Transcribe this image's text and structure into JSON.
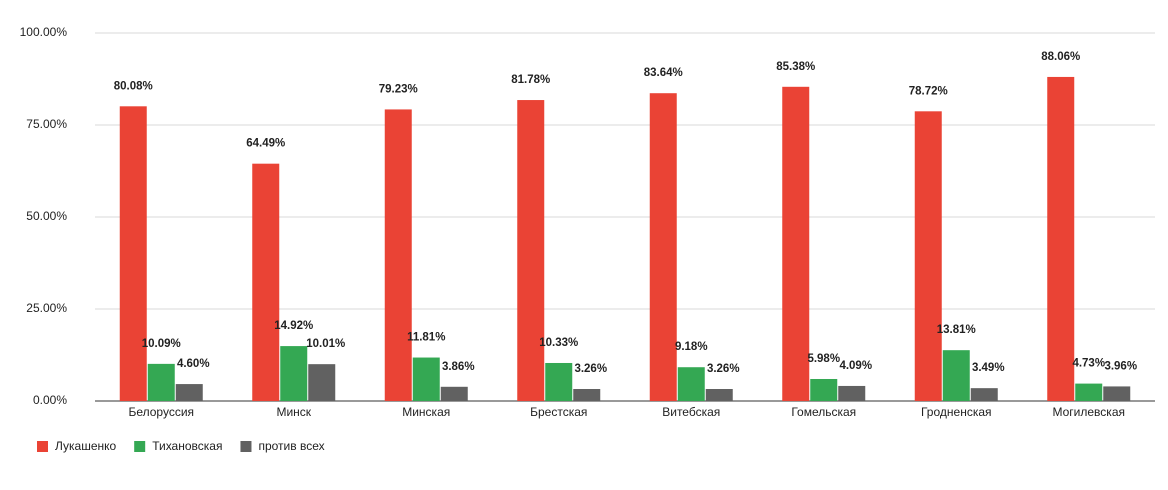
{
  "chart_data": {
    "type": "bar",
    "categories": [
      "Белоруссия",
      "Минск",
      "Минская",
      "Брестская",
      "Витебская",
      "Гомельская",
      "Гродненская",
      "Могилевская"
    ],
    "series": [
      {
        "name": "Лукашенко",
        "color": "#ea4335",
        "values": [
          80.08,
          64.49,
          79.23,
          81.78,
          83.64,
          85.38,
          78.72,
          88.06
        ],
        "value_labels": [
          "80.08%",
          "64.49%",
          "79.23%",
          "81.78%",
          "83.64%",
          "85.38%",
          "78.72%",
          "88.06%"
        ]
      },
      {
        "name": "Тихановская",
        "color": "#34a853",
        "values": [
          10.09,
          14.92,
          11.81,
          10.33,
          9.18,
          5.98,
          13.81,
          4.73
        ],
        "value_labels": [
          "10.09%",
          "14.92%",
          "11.81%",
          "10.33%",
          "9.18%",
          "5.98%",
          "13.81%",
          "4.73%"
        ]
      },
      {
        "name": "против всех",
        "color": "#616161",
        "values": [
          4.6,
          10.01,
          3.86,
          3.26,
          3.26,
          4.09,
          3.49,
          3.96
        ],
        "value_labels": [
          "4.60%",
          "10.01%",
          "3.86%",
          "3.26%",
          "3.26%",
          "4.09%",
          "3.49%",
          "3.96%"
        ]
      }
    ],
    "ylim": [
      0,
      100
    ],
    "yticks": [
      {
        "value": 0,
        "label": "0.00%"
      },
      {
        "value": 25,
        "label": "25.00%"
      },
      {
        "value": 50,
        "label": "50.00%"
      },
      {
        "value": 75,
        "label": "75.00%"
      },
      {
        "value": 100,
        "label": "100.00%"
      }
    ],
    "grid": true,
    "legend": "bottom"
  }
}
